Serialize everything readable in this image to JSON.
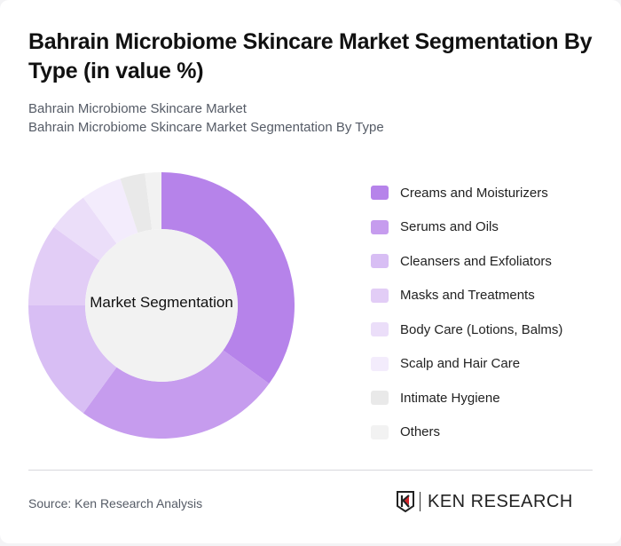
{
  "header": {
    "title": "Bahrain Microbiome Skincare Market Segmentation By Type (in value %)",
    "subtitle_1": "Bahrain Microbiome Skincare Market",
    "subtitle_2": "Bahrain Microbiome Skincare Market Segmentation By Type"
  },
  "chart": {
    "center_label": "Market Segmentation"
  },
  "chart_data": {
    "type": "pie",
    "variant": "donut",
    "title": "Bahrain Microbiome Skincare Market Segmentation By Type (in value %)",
    "center_label": "Market Segmentation",
    "categories": [
      "Creams and Moisturizers",
      "Serums and Oils",
      "Cleansers and Exfoliators",
      "Masks and Treatments",
      "Body Care (Lotions, Balms)",
      "Scalp and Hair Care",
      "Intimate Hygiene",
      "Others"
    ],
    "values": [
      35,
      25,
      15,
      10,
      5,
      5,
      3,
      2
    ],
    "colors": [
      "#b683ea",
      "#c69cee",
      "#d8bef4",
      "#e2cdf6",
      "#ebdef9",
      "#f3ecfc",
      "#e9e9e9",
      "#f2f2f2"
    ],
    "legend_position": "right",
    "unit": "%"
  },
  "legend": {
    "items": [
      {
        "label": "Creams and Moisturizers",
        "color": "#b683ea"
      },
      {
        "label": "Serums and Oils",
        "color": "#c69cee"
      },
      {
        "label": "Cleansers and Exfoliators",
        "color": "#d8bef4"
      },
      {
        "label": "Masks and Treatments",
        "color": "#e2cdf6"
      },
      {
        "label": "Body Care (Lotions, Balms)",
        "color": "#ebdef9"
      },
      {
        "label": "Scalp and Hair Care",
        "color": "#f3ecfc"
      },
      {
        "label": "Intimate Hygiene",
        "color": "#e9e9e9"
      },
      {
        "label": "Others",
        "color": "#f2f2f2"
      }
    ]
  },
  "footer": {
    "source": "Source: Ken Research Analysis",
    "logo_text": "KEN RESEARCH"
  }
}
